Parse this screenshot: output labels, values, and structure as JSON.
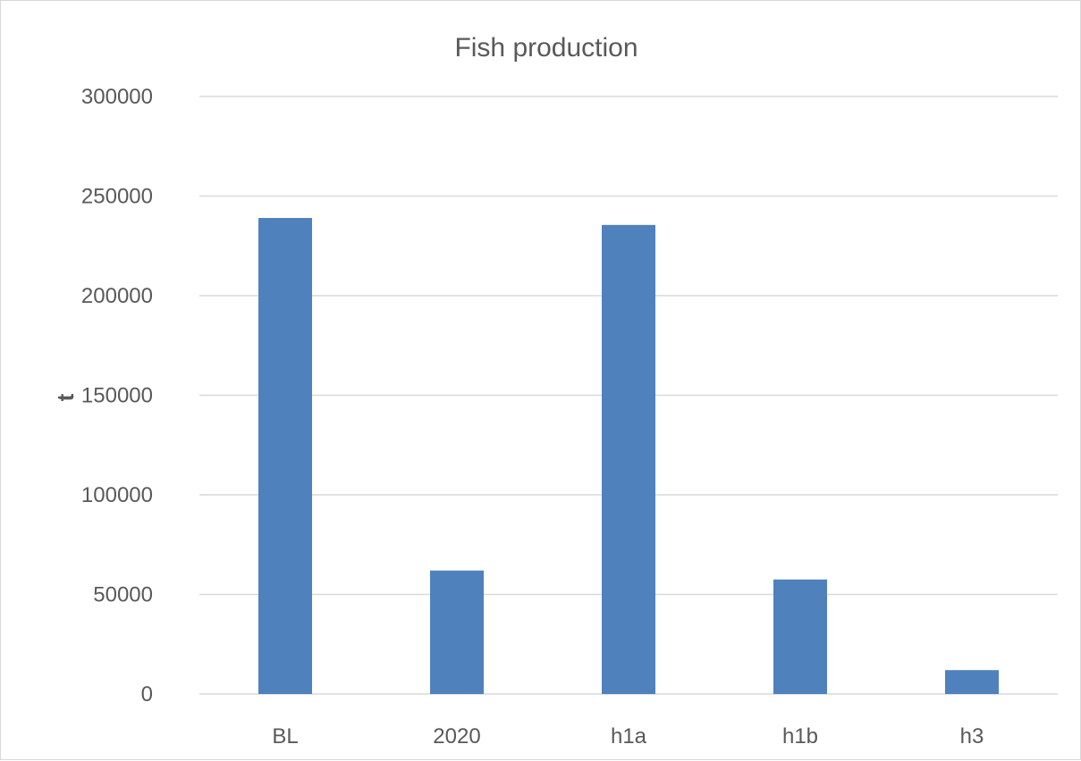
{
  "chart_data": {
    "type": "bar",
    "title": "Fish production",
    "xlabel": "",
    "ylabel": "t",
    "categories": [
      "BL",
      "2020",
      "h1a",
      "h1b",
      "h3"
    ],
    "series": [
      {
        "values": [
          239000,
          62000,
          235500,
          57500,
          12000
        ]
      }
    ],
    "ylim": [
      0,
      300000
    ],
    "yticks": [
      "0",
      "50000",
      "100000",
      "150000",
      "200000",
      "250000",
      "300000"
    ],
    "grid": true,
    "legend": "none",
    "colors": {
      "bar": "#4f81bd",
      "grid": "#d9d9d9",
      "text": "#595959"
    }
  }
}
